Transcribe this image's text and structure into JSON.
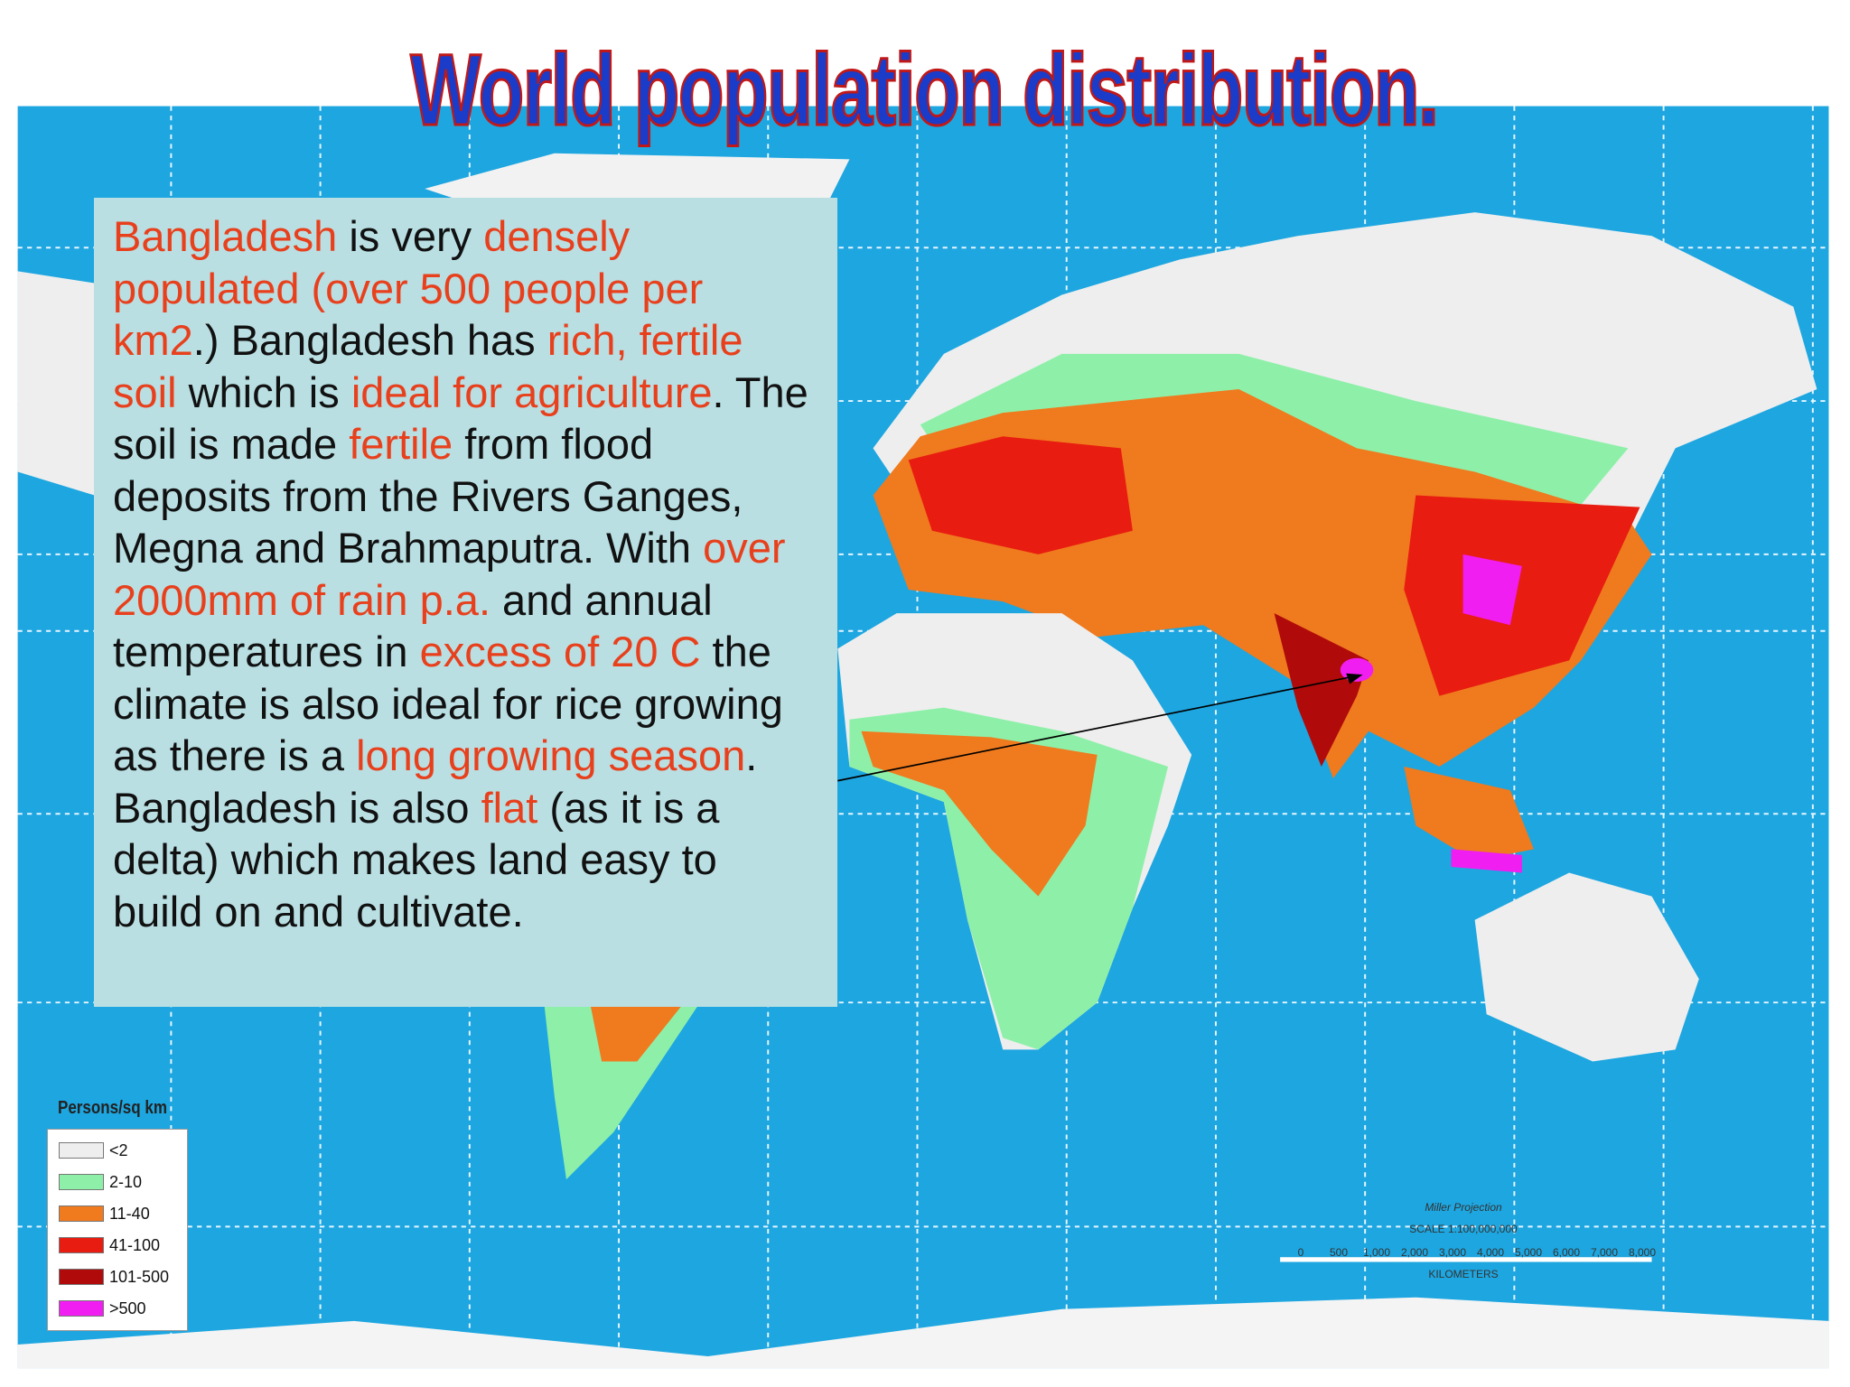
{
  "title": "World population distribution.",
  "textbox": {
    "segments": [
      {
        "text": "Bangladesh",
        "color": "#e8401c"
      },
      {
        "text": " is very ",
        "color": "#111111"
      },
      {
        "text": "densely populated (over 500 people per km2",
        "color": "#e8401c"
      },
      {
        "text": ".) Bangladesh has ",
        "color": "#111111"
      },
      {
        "text": "rich, fertile soil",
        "color": "#e8401c"
      },
      {
        "text": " which is ",
        "color": "#111111"
      },
      {
        "text": "ideal for agriculture",
        "color": "#e8401c"
      },
      {
        "text": ". The soil is made ",
        "color": "#111111"
      },
      {
        "text": "fertile",
        "color": "#e8401c"
      },
      {
        "text": " from flood deposits from the Rivers Ganges, Megna and Brahmaputra. With ",
        "color": "#111111"
      },
      {
        "text": "over 2000mm of rain p.a.",
        "color": "#e8401c"
      },
      {
        "text": " and annual temperatures in ",
        "color": "#111111"
      },
      {
        "text": "excess of 20 C",
        "color": "#e8401c"
      },
      {
        "text": " the climate is also ideal for rice growing as there is a ",
        "color": "#111111"
      },
      {
        "text": "long growing season",
        "color": "#e8401c"
      },
      {
        "text": ". Bangladesh is also ",
        "color": "#111111"
      },
      {
        "text": "flat",
        "color": "#e8401c"
      },
      {
        "text": " (as it is a delta) which makes land easy to build on and cultivate.",
        "color": "#111111"
      }
    ]
  },
  "legend": {
    "title": "Persons/sq km",
    "items": [
      {
        "label": "<2",
        "color": "#eeeeee"
      },
      {
        "label": "2-10",
        "color": "#8ef0a8"
      },
      {
        "label": "11-40",
        "color": "#f07a1e"
      },
      {
        "label": "41-100",
        "color": "#e81c10"
      },
      {
        "label": "101-500",
        "color": "#b00a0a"
      },
      {
        "label": ">500",
        "color": "#f01ef0"
      }
    ]
  },
  "scale": {
    "projection": "Miller Projection",
    "ratio": "SCALE 1:100,000,000",
    "unit": "KILOMETERS",
    "ticks": [
      "0",
      "500",
      "1,000",
      "2,000",
      "3,000",
      "4,000",
      "5,000",
      "6,000",
      "7,000",
      "8,000"
    ]
  }
}
